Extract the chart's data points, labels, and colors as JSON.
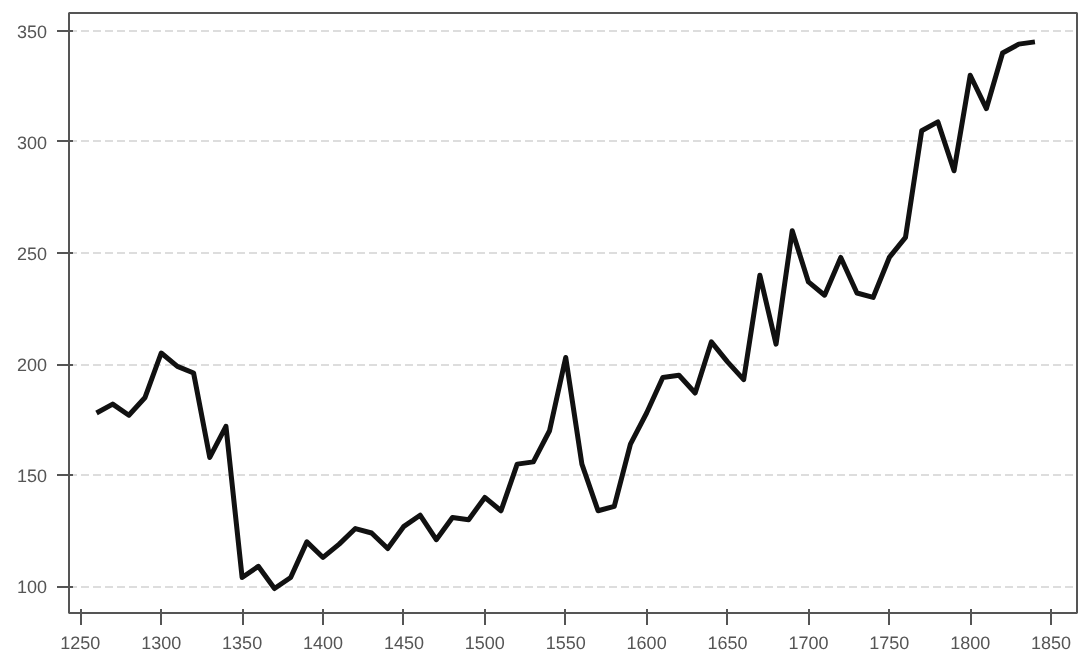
{
  "chart_data": {
    "type": "line",
    "x": [
      1260,
      1270,
      1280,
      1290,
      1300,
      1310,
      1320,
      1330,
      1340,
      1350,
      1360,
      1370,
      1380,
      1390,
      1400,
      1410,
      1420,
      1430,
      1440,
      1450,
      1460,
      1470,
      1480,
      1490,
      1500,
      1510,
      1520,
      1530,
      1540,
      1550,
      1560,
      1570,
      1580,
      1590,
      1600,
      1610,
      1620,
      1630,
      1640,
      1650,
      1660,
      1670,
      1680,
      1690,
      1700,
      1710,
      1720,
      1730,
      1740,
      1750,
      1760,
      1770,
      1780,
      1790,
      1800,
      1810,
      1820,
      1830,
      1840
    ],
    "series": [
      {
        "color": "#111111",
        "values": [
          178,
          182,
          177,
          185,
          205,
          199,
          196,
          158,
          172,
          104,
          109,
          99,
          104,
          120,
          113,
          119,
          126,
          124,
          117,
          127,
          132,
          121,
          131,
          130,
          140,
          134,
          155,
          156,
          170,
          203,
          155,
          134,
          136,
          164,
          178,
          194,
          195,
          187,
          210,
          201,
          193,
          240,
          209,
          260,
          237,
          231,
          248,
          232,
          230,
          248,
          257,
          305,
          309,
          287,
          330,
          315,
          340,
          344,
          345
        ]
      }
    ],
    "xlim": [
      1243,
      1866
    ],
    "ylim": [
      88,
      358
    ],
    "xticks": [
      1250,
      1300,
      1350,
      1400,
      1450,
      1500,
      1550,
      1600,
      1650,
      1700,
      1750,
      1800,
      1850
    ],
    "yticks": [
      100,
      150,
      200,
      250,
      300,
      350
    ],
    "grid": "y",
    "line_style": "solid",
    "marker": "none"
  }
}
